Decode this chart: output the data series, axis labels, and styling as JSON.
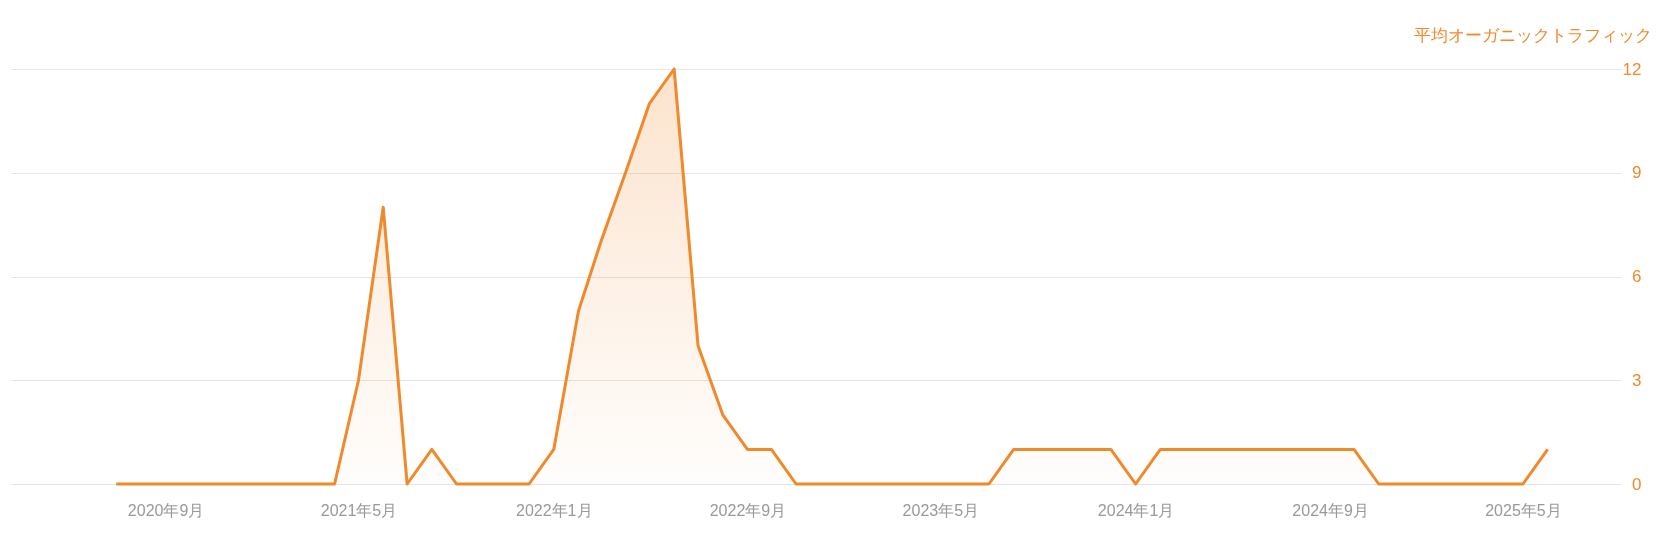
{
  "chart_data": {
    "type": "area",
    "ylabel": "平均オーガニックトラフィック",
    "x": [
      "2020-07",
      "2020-08",
      "2020-09",
      "2020-10",
      "2020-11",
      "2020-12",
      "2021-01",
      "2021-02",
      "2021-03",
      "2021-04",
      "2021-05",
      "2021-06",
      "2021-07",
      "2021-08",
      "2021-09",
      "2021-10",
      "2021-11",
      "2021-12",
      "2022-01",
      "2022-02",
      "2022-03",
      "2022-04",
      "2022-05",
      "2022-06",
      "2022-07",
      "2022-08",
      "2022-09",
      "2022-10",
      "2022-11",
      "2022-12",
      "2023-01",
      "2023-02",
      "2023-03",
      "2023-04",
      "2023-05",
      "2023-06",
      "2023-07",
      "2023-08",
      "2023-09",
      "2023-10",
      "2023-11",
      "2023-12",
      "2024-01",
      "2024-02",
      "2024-03",
      "2024-04",
      "2024-05",
      "2024-06",
      "2024-07",
      "2024-08",
      "2024-09",
      "2024-10",
      "2024-11",
      "2024-12",
      "2025-01",
      "2025-02",
      "2025-03",
      "2025-04",
      "2025-05",
      "2025-06"
    ],
    "series": [
      {
        "color": "#f0892a",
        "values": [
          0,
          0,
          0,
          0,
          0,
          0,
          0,
          0,
          0,
          0,
          3,
          8,
          0,
          1,
          0,
          0,
          0,
          0,
          1,
          5,
          7,
          9,
          11,
          12,
          4,
          2,
          1,
          1,
          0,
          0,
          0,
          0,
          0,
          0,
          0,
          0,
          0,
          1,
          1,
          1,
          1,
          1,
          0,
          1,
          1,
          1,
          1,
          1,
          1,
          1,
          1,
          1,
          0,
          0,
          0,
          0,
          0,
          0,
          0,
          1
        ]
      }
    ],
    "xlim": [
      "2020-02-20",
      "2025-09-01"
    ],
    "xticks": [
      {
        "value": "2020-09",
        "label": "2020年9月"
      },
      {
        "value": "2021-05",
        "label": "2021年5月"
      },
      {
        "value": "2022-01",
        "label": "2022年1月"
      },
      {
        "value": "2022-09",
        "label": "2022年9月"
      },
      {
        "value": "2023-05",
        "label": "2023年5月"
      },
      {
        "value": "2024-01",
        "label": "2024年1月"
      },
      {
        "value": "2024-09",
        "label": "2024年9月"
      },
      {
        "value": "2025-05",
        "label": "2025年5月"
      }
    ],
    "ylim": [
      0,
      12
    ],
    "yticks": [
      0,
      3,
      6,
      9,
      12
    ],
    "grid": "y"
  }
}
